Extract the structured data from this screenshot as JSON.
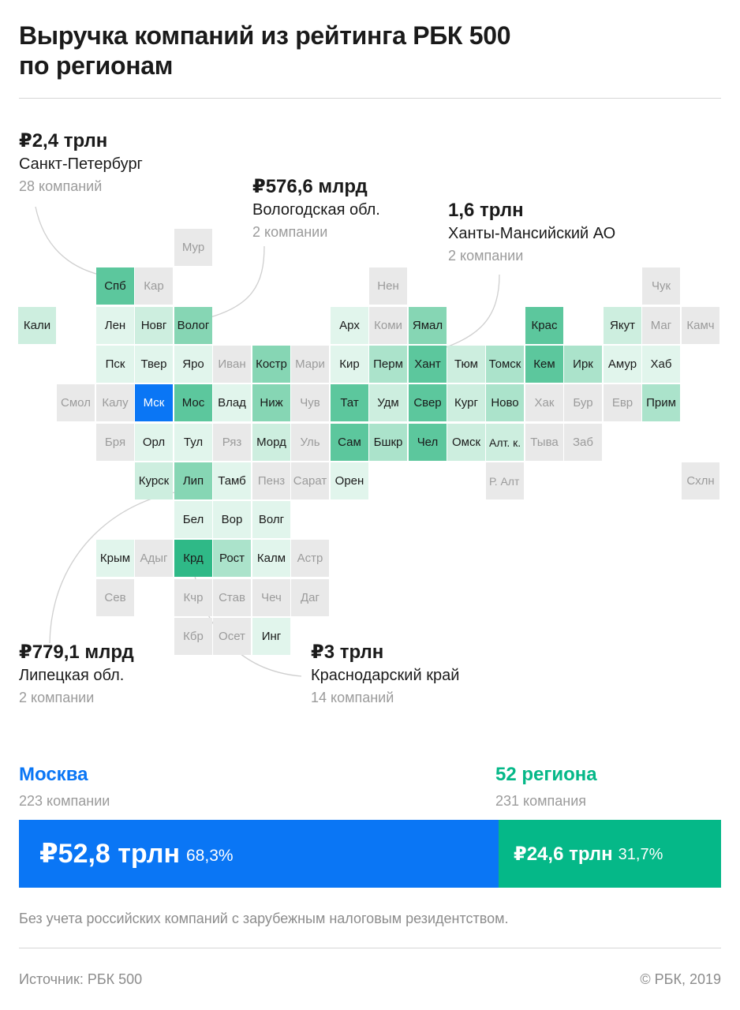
{
  "title_line1": "Выручка компаний из рейтинга РБК 500",
  "title_line2": "по регионам",
  "colors": {
    "moscow": "#0a76f5",
    "regions": "#05b888",
    "scale": [
      "#e9e9e9",
      "#e1f5ec",
      "#cdeedf",
      "#abe3cb",
      "#86d6b4",
      "#5cc79d",
      "#2fb987"
    ]
  },
  "callouts": {
    "spb": {
      "value": "₽2,4 трлн",
      "region": "Санкт-Петербург",
      "companies": "28 компаний"
    },
    "vologda": {
      "value": "₽576,6 млрд",
      "region": "Вологодская обл.",
      "companies": "2 компании"
    },
    "khanty": {
      "value": "1,6 трлн",
      "region": "Ханты-Мансийский АО",
      "companies": "2 компании"
    },
    "lipetsk": {
      "value": "₽779,1 млрд",
      "region": "Липецкая обл.",
      "companies": "2 компании"
    },
    "krasnodar": {
      "value": "₽3 трлн",
      "region": "Краснодарский край",
      "companies": "14 компаний"
    }
  },
  "map_cells": [
    {
      "label": "Мур",
      "level": 0
    },
    {
      "label": "Спб",
      "level": 5
    },
    {
      "label": "Кар",
      "level": 0
    },
    {
      "label": "Нен",
      "level": 0
    },
    {
      "label": "Чук",
      "level": 0
    },
    {
      "label": "Кали",
      "level": 2
    },
    {
      "label": "Лен",
      "level": 1
    },
    {
      "label": "Новг",
      "level": 2
    },
    {
      "label": "Волог",
      "level": 4
    },
    {
      "label": "Арх",
      "level": 1
    },
    {
      "label": "Коми",
      "level": 0
    },
    {
      "label": "Ямал",
      "level": 4
    },
    {
      "label": "Крас",
      "level": 5
    },
    {
      "label": "Якут",
      "level": 2
    },
    {
      "label": "Маг",
      "level": 0
    },
    {
      "label": "Камч",
      "level": 0
    },
    {
      "label": "Пск",
      "level": 1
    },
    {
      "label": "Твер",
      "level": 1
    },
    {
      "label": "Яро",
      "level": 1
    },
    {
      "label": "Иван",
      "level": 0
    },
    {
      "label": "Костр",
      "level": 4
    },
    {
      "label": "Мари",
      "level": 0
    },
    {
      "label": "Кир",
      "level": 1
    },
    {
      "label": "Перм",
      "level": 3
    },
    {
      "label": "Хант",
      "level": 5
    },
    {
      "label": "Тюм",
      "level": 2
    },
    {
      "label": "Томск",
      "level": 3
    },
    {
      "label": "Кем",
      "level": 5
    },
    {
      "label": "Ирк",
      "level": 3
    },
    {
      "label": "Амур",
      "level": 1
    },
    {
      "label": "Хаб",
      "level": 1
    },
    {
      "label": "Смол",
      "level": 0
    },
    {
      "label": "Калу",
      "level": 0
    },
    {
      "label": "Мск",
      "level": 9
    },
    {
      "label": "Мос",
      "level": 5
    },
    {
      "label": "Влад",
      "level": 1
    },
    {
      "label": "Ниж",
      "level": 4
    },
    {
      "label": "Чув",
      "level": 0
    },
    {
      "label": "Тат",
      "level": 5
    },
    {
      "label": "Удм",
      "level": 2
    },
    {
      "label": "Свер",
      "level": 5
    },
    {
      "label": "Кург",
      "level": 2
    },
    {
      "label": "Ново",
      "level": 3
    },
    {
      "label": "Хак",
      "level": 0
    },
    {
      "label": "Бур",
      "level": 0
    },
    {
      "label": "Евр",
      "level": 0
    },
    {
      "label": "Прим",
      "level": 3
    },
    {
      "label": "Бря",
      "level": 0
    },
    {
      "label": "Орл",
      "level": 1
    },
    {
      "label": "Тул",
      "level": 1
    },
    {
      "label": "Ряз",
      "level": 0
    },
    {
      "label": "Морд",
      "level": 2
    },
    {
      "label": "Уль",
      "level": 0
    },
    {
      "label": "Сам",
      "level": 5
    },
    {
      "label": "Бшкр",
      "level": 3
    },
    {
      "label": "Чел",
      "level": 5
    },
    {
      "label": "Омск",
      "level": 2
    },
    {
      "label": "Алт. к.",
      "level": 2
    },
    {
      "label": "Тыва",
      "level": 0
    },
    {
      "label": "Заб",
      "level": 0
    },
    {
      "label": "Курск",
      "level": 2
    },
    {
      "label": "Лип",
      "level": 4
    },
    {
      "label": "Тамб",
      "level": 1
    },
    {
      "label": "Пенз",
      "level": 0
    },
    {
      "label": "Сарат",
      "level": 0
    },
    {
      "label": "Орен",
      "level": 1
    },
    {
      "label": "Р. Алт",
      "level": 0
    },
    {
      "label": "Схлн",
      "level": 0
    },
    {
      "label": "Бел",
      "level": 1
    },
    {
      "label": "Вор",
      "level": 1
    },
    {
      "label": "Волг",
      "level": 1
    },
    {
      "label": "Крым",
      "level": 1
    },
    {
      "label": "Адыг",
      "level": 0
    },
    {
      "label": "Крд",
      "level": 6
    },
    {
      "label": "Рост",
      "level": 3
    },
    {
      "label": "Калм",
      "level": 1
    },
    {
      "label": "Астр",
      "level": 0
    },
    {
      "label": "Сев",
      "level": 0
    },
    {
      "label": "Кчр",
      "level": 0
    },
    {
      "label": "Став",
      "level": 0
    },
    {
      "label": "Чеч",
      "level": 0
    },
    {
      "label": "Даг",
      "level": 0
    },
    {
      "label": "Кбр",
      "level": 0
    },
    {
      "label": "Осет",
      "level": 0
    },
    {
      "label": "Инг",
      "level": 1
    }
  ],
  "summary": {
    "moscow": {
      "name": "Москва",
      "companies": "223 компании",
      "value": "₽52,8 трлн",
      "percent": "68,3%",
      "share": 0.683
    },
    "regions": {
      "name": "52 региона",
      "companies": "231 компания",
      "value": "₽24,6 трлн",
      "percent": "31,7%",
      "share": 0.317
    }
  },
  "footnote": "Без учета российских компаний с зарубежным налоговым резидентством.",
  "source": "Источник: РБК 500",
  "copyright": "© РБК, 2019"
}
